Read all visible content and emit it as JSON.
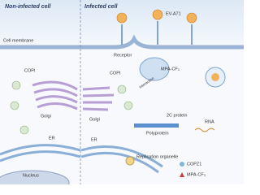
{
  "panels": {
    "left": "Non-infected cell",
    "right": "Infected cell"
  },
  "labels": {
    "virus": "EV-A71",
    "membrane": "Cell membrane",
    "receptor": "Receptor",
    "drug": "MPA-CF₃",
    "interaction": "Interaction",
    "copi_left": "COPI",
    "copi_right": "COPI",
    "protein_2c": "2C protein",
    "rna": "RNA",
    "golgi_left": "Golgi",
    "golgi_right": "Golgi",
    "er_left": "ER",
    "er_right": "ER",
    "polyprotein": "Polyprotein",
    "nucleus": "Nucleus",
    "replication": "Replication organelle"
  },
  "legend": [
    "COPZ1",
    "MPA-CF₃"
  ]
}
